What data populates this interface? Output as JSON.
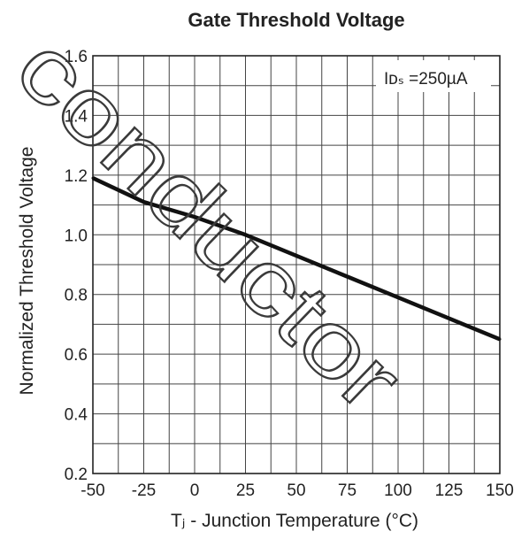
{
  "chart_data": {
    "type": "line",
    "title": "Gate Threshold Voltage",
    "xlabel": "Tⱼ - Junction Temperature (°C)",
    "ylabel": "Normalized Threshold Voltage",
    "xlim": [
      -50,
      150
    ],
    "ylim": [
      0.2,
      1.6
    ],
    "x_ticks": [
      "-50",
      "-25",
      "0",
      "25",
      "50",
      "75",
      "100",
      "125",
      "150"
    ],
    "y_ticks": [
      "0.2",
      "0.4",
      "0.6",
      "0.8",
      "1.0",
      "1.2",
      "1.4",
      "1.6"
    ],
    "grid": true,
    "legend_text": "Iᴅₛ =250µA",
    "legend_position": "top-right",
    "series": [
      {
        "x": [
          -50,
          -25,
          0,
          25,
          50,
          75,
          100,
          125,
          150
        ],
        "y": [
          1.19,
          1.11,
          1.06,
          1.0,
          0.93,
          0.86,
          0.79,
          0.72,
          0.65
        ]
      }
    ]
  },
  "watermark": "conductor"
}
